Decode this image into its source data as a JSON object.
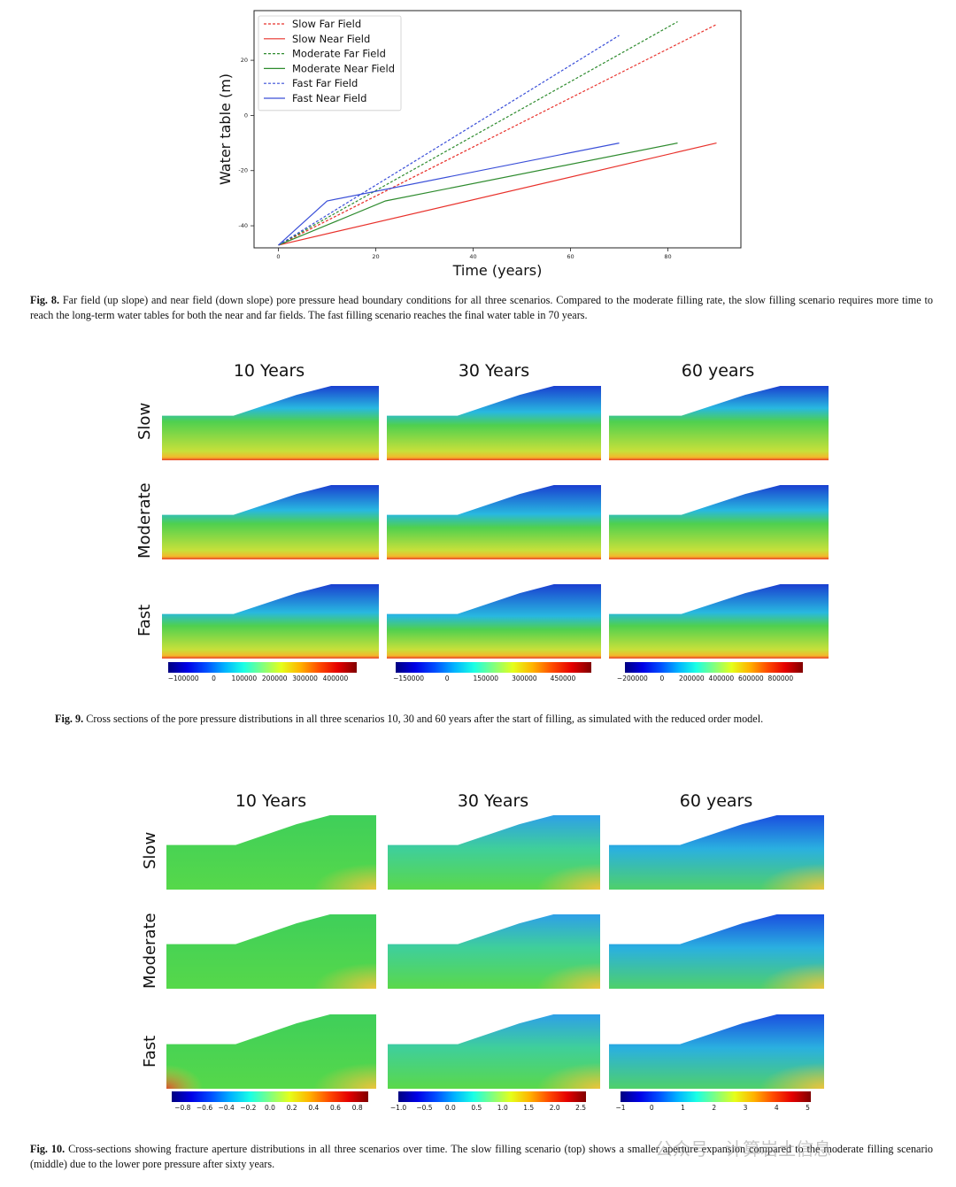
{
  "fig8": {
    "chart_data": {
      "type": "line",
      "xlabel": "Time (years)",
      "ylabel": "Water table (m)",
      "xlim": [
        -5,
        95
      ],
      "ylim": [
        -48,
        38
      ],
      "xticks": [
        0,
        20,
        40,
        60,
        80
      ],
      "yticks": [
        -40,
        -20,
        0,
        20
      ],
      "legend_position": "top-left",
      "series": [
        {
          "name": "Slow Far Field",
          "color": "#e8302a",
          "dash": true,
          "x": [
            0,
            90
          ],
          "y": [
            -47,
            33
          ]
        },
        {
          "name": "Slow Near Field",
          "color": "#e8302a",
          "dash": false,
          "x": [
            0,
            90
          ],
          "y": [
            -47,
            -10
          ]
        },
        {
          "name": "Moderate Far Field",
          "color": "#2e8b2e",
          "dash": true,
          "x": [
            0,
            82
          ],
          "y": [
            -47,
            34
          ]
        },
        {
          "name": "Moderate Near Field",
          "color": "#2e8b2e",
          "dash": false,
          "x": [
            0,
            22,
            82
          ],
          "y": [
            -47,
            -31,
            -10
          ]
        },
        {
          "name": "Fast Far Field",
          "color": "#3a4fd8",
          "dash": true,
          "x": [
            0,
            70
          ],
          "y": [
            -47,
            29
          ]
        },
        {
          "name": "Fast Near Field",
          "color": "#3a4fd8",
          "dash": false,
          "x": [
            0,
            10,
            70
          ],
          "y": [
            -47,
            -31,
            -10
          ]
        }
      ]
    },
    "caption_label": "Fig. 8.",
    "caption_text": "Far field (up slope) and near field (down slope) pore pressure head boundary conditions for all three scenarios. Compared to the moderate filling rate, the slow filling scenario requires more time to reach the long-term water tables for both the near and far fields. The fast filling scenario reaches the final water table in 70 years."
  },
  "fig9": {
    "columns": [
      "10 Years",
      "30 Years",
      "60 years"
    ],
    "rows": [
      "Slow",
      "Moderate",
      "Fast"
    ],
    "colorbars": [
      {
        "ticks": [
          "−100000",
          "0",
          "100000",
          "200000",
          "300000",
          "400000"
        ],
        "vmin": -150000,
        "vmax": 470000,
        "values": [
          -100000,
          0,
          100000,
          200000,
          300000,
          400000
        ]
      },
      {
        "ticks": [
          "−150000",
          "0",
          "150000",
          "300000",
          "450000"
        ],
        "vmin": -200000,
        "vmax": 560000,
        "values": [
          -150000,
          0,
          150000,
          300000,
          450000
        ]
      },
      {
        "ticks": [
          "−200000",
          "0",
          "200000",
          "400000",
          "600000",
          "800000"
        ],
        "vmin": -250000,
        "vmax": 950000,
        "values": [
          -200000,
          0,
          200000,
          400000,
          600000,
          800000
        ]
      }
    ],
    "caption_label": "Fig. 9.",
    "caption_text": "Cross sections of the pore pressure distributions in all three scenarios 10, 30 and 60 years after the start of filling, as simulated with the reduced order model."
  },
  "fig10": {
    "columns": [
      "10 Years",
      "30 Years",
      "60 years"
    ],
    "rows": [
      "Slow",
      "Moderate",
      "Fast"
    ],
    "colorbars": [
      {
        "ticks": [
          "−0.8",
          "−0.6",
          "−0.4",
          "−0.2",
          "0.0",
          "0.2",
          "0.4",
          "0.6",
          "0.8"
        ],
        "vmin": -0.9,
        "vmax": 0.9,
        "values": [
          -0.8,
          -0.6,
          -0.4,
          -0.2,
          0.0,
          0.2,
          0.4,
          0.6,
          0.8
        ]
      },
      {
        "ticks": [
          "−1.0",
          "−0.5",
          "0.0",
          "0.5",
          "1.0",
          "1.5",
          "2.0",
          "2.5"
        ],
        "vmin": -1.0,
        "vmax": 2.6,
        "values": [
          -1.0,
          -0.5,
          0.0,
          0.5,
          1.0,
          1.5,
          2.0,
          2.5
        ]
      },
      {
        "ticks": [
          "−1",
          "0",
          "1",
          "2",
          "3",
          "4",
          "5"
        ],
        "vmin": -1.0,
        "vmax": 5.1,
        "values": [
          -1,
          0,
          1,
          2,
          3,
          4,
          5
        ]
      }
    ],
    "caption_label": "Fig. 10.",
    "caption_text": "Cross-sections showing fracture aperture distributions in all three scenarios over time. The slow filling scenario (top) shows a smaller aperture expansion compared to the moderate filling scenario (middle) due to the lower pore pressure after sixty years."
  },
  "watermark": "公众号 · 计算岩土信息"
}
